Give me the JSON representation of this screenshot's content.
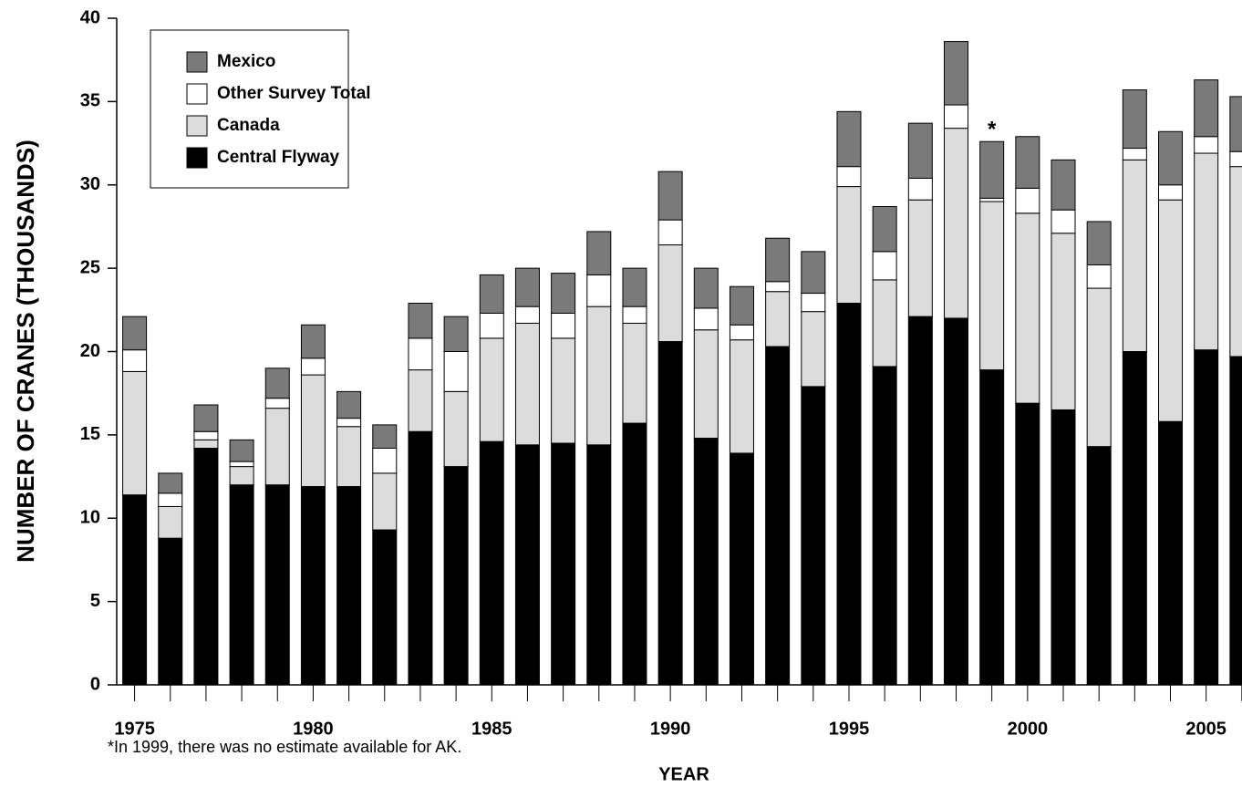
{
  "chart_data": {
    "type": "stacked-bar",
    "y_label": "NUMBER OF CRANES (THOUSANDS)",
    "x_label": "YEAR",
    "footnote": "*In 1999, there was no estimate available for AK.",
    "annotations": [
      {
        "text": "*",
        "x": 1999
      }
    ],
    "x": [
      1975,
      1976,
      1977,
      1978,
      1979,
      1980,
      1981,
      1982,
      1983,
      1984,
      1985,
      1986,
      1987,
      1988,
      1989,
      1990,
      1991,
      1992,
      1993,
      1994,
      1995,
      1996,
      1997,
      1998,
      1999,
      2000,
      2001,
      2002,
      2003,
      2004,
      2005,
      2006
    ],
    "xlim": [
      1974.5,
      2006.5
    ],
    "xticks": [
      1975,
      1980,
      1985,
      1990,
      1995,
      2000,
      2005
    ],
    "ylim": [
      0,
      40
    ],
    "yticks": [
      0,
      5,
      10,
      15,
      20,
      25,
      30,
      35,
      40
    ],
    "legend": "upper left",
    "series": [
      {
        "name": "Central Flyway",
        "color": "#000000",
        "values": [
          11.4,
          8.8,
          14.2,
          12.0,
          12.0,
          11.9,
          11.9,
          9.3,
          15.2,
          13.1,
          14.6,
          14.4,
          14.5,
          14.4,
          15.7,
          20.6,
          14.8,
          13.9,
          20.3,
          17.9,
          22.9,
          19.1,
          22.1,
          22.0,
          18.9,
          16.9,
          16.5,
          14.3,
          20.0,
          15.8,
          20.1,
          19.7
        ]
      },
      {
        "name": "Canada",
        "color": "#dcdcdc",
        "values": [
          7.4,
          1.9,
          0.5,
          1.1,
          4.6,
          6.7,
          3.6,
          3.4,
          3.7,
          4.5,
          6.2,
          7.3,
          6.3,
          8.3,
          6.0,
          5.8,
          6.5,
          6.8,
          3.3,
          4.5,
          7.0,
          5.2,
          7.0,
          11.4,
          10.1,
          11.4,
          10.6,
          9.5,
          11.5,
          13.3,
          11.8,
          11.4
        ]
      },
      {
        "name": "Other Survey Total",
        "color": "#ffffff",
        "values": [
          1.3,
          0.8,
          0.5,
          0.3,
          0.6,
          1.0,
          0.5,
          1.5,
          1.9,
          2.4,
          1.5,
          1.0,
          1.5,
          1.9,
          1.0,
          1.5,
          1.3,
          0.9,
          0.6,
          1.1,
          1.2,
          1.7,
          1.3,
          1.4,
          0.2,
          1.5,
          1.4,
          1.4,
          0.7,
          0.9,
          1.0,
          0.9
        ]
      },
      {
        "name": "Mexico",
        "color": "#7a7a7a",
        "values": [
          2.0,
          1.2,
          1.6,
          1.3,
          1.8,
          2.0,
          1.6,
          1.4,
          2.1,
          2.1,
          2.3,
          2.3,
          2.4,
          2.6,
          2.3,
          2.9,
          2.4,
          2.3,
          2.6,
          2.5,
          3.3,
          2.7,
          3.3,
          3.8,
          3.4,
          3.1,
          3.0,
          2.6,
          3.5,
          3.2,
          3.4,
          3.3
        ]
      }
    ]
  }
}
